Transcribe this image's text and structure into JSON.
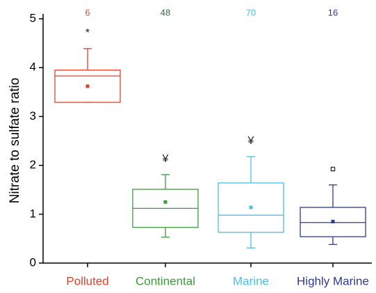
{
  "chart_data": {
    "type": "box",
    "y_label": "Nitrate to sulfate ratio",
    "categories": [
      "Polluted",
      "Continental",
      "Marine",
      "Highly Marine"
    ],
    "colors": [
      "#e2412c",
      "#3c9a3c",
      "#4cc0e2",
      "#2d3a96"
    ],
    "count_colors": [
      "#b95a2a",
      "#2f6e2f",
      "#4cc0e2",
      "#2d3a96"
    ],
    "counts": [
      6,
      48,
      70,
      16
    ],
    "annotations": [
      "*",
      "¥",
      "¥",
      "¤"
    ],
    "boxes": [
      {
        "low": 3.29,
        "q1": 3.29,
        "median": 3.83,
        "q3": 3.95,
        "high": 4.39,
        "mean": 3.62
      },
      {
        "low": 0.53,
        "q1": 0.73,
        "median": 1.12,
        "q3": 1.51,
        "high": 1.81,
        "mean": 1.25
      },
      {
        "low": 0.31,
        "q1": 0.63,
        "median": 0.98,
        "q3": 1.64,
        "high": 2.18,
        "mean": 1.14
      },
      {
        "low": 0.38,
        "q1": 0.54,
        "median": 0.83,
        "q3": 1.14,
        "high": 1.6,
        "mean": 0.85
      }
    ],
    "ylim": [
      0,
      5
    ],
    "yticks": [
      0,
      1,
      2,
      3,
      4,
      5
    ]
  }
}
